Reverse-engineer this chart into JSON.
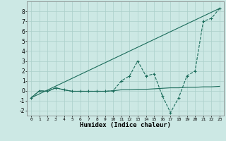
{
  "xlabel": "Humidex (Indice chaleur)",
  "background_color": "#cce8e4",
  "grid_color": "#aacfca",
  "line_color": "#1a6b5a",
  "xlim": [
    -0.5,
    23.5
  ],
  "ylim": [
    -2.5,
    9.0
  ],
  "yticks": [
    -2,
    -1,
    0,
    1,
    2,
    3,
    4,
    5,
    6,
    7,
    8
  ],
  "xticks": [
    0,
    1,
    2,
    3,
    4,
    5,
    6,
    7,
    8,
    9,
    10,
    11,
    12,
    13,
    14,
    15,
    16,
    17,
    18,
    19,
    20,
    21,
    22,
    23
  ],
  "series_smooth": {
    "x": [
      0,
      1,
      2,
      3,
      4,
      5,
      6,
      7,
      8,
      9,
      10,
      11,
      12,
      13,
      14,
      15,
      16,
      17,
      18,
      19,
      20,
      21,
      22,
      23
    ],
    "y": [
      -0.7,
      0.0,
      -0.05,
      0.3,
      0.1,
      -0.05,
      -0.05,
      -0.05,
      -0.05,
      -0.05,
      0.0,
      0.1,
      0.1,
      0.15,
      0.15,
      0.2,
      0.25,
      0.3,
      0.3,
      0.35,
      0.35,
      0.4,
      0.4,
      0.45
    ]
  },
  "series_data": {
    "x": [
      0,
      1,
      2,
      3,
      4,
      5,
      6,
      7,
      8,
      9,
      10,
      11,
      12,
      13,
      14,
      15,
      16,
      17,
      18,
      19,
      20,
      21,
      22,
      23
    ],
    "y": [
      -0.7,
      0.0,
      -0.05,
      0.3,
      0.1,
      -0.05,
      -0.05,
      -0.05,
      -0.05,
      -0.05,
      0.0,
      1.0,
      1.5,
      3.0,
      1.5,
      1.7,
      -0.5,
      -2.2,
      -0.7,
      1.5,
      2.0,
      7.0,
      7.3,
      8.3
    ]
  },
  "series_linear": {
    "x": [
      0,
      23
    ],
    "y": [
      -0.7,
      8.3
    ]
  }
}
